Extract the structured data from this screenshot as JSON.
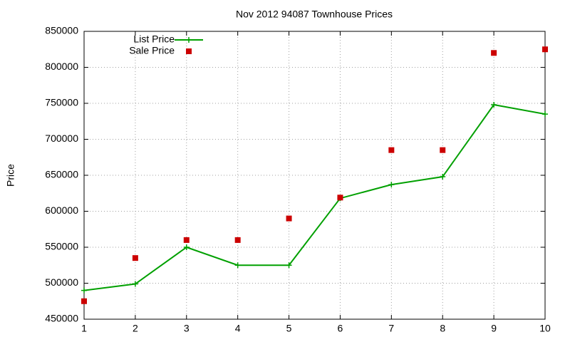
{
  "chart_data": {
    "type": "line",
    "title": "Nov 2012 94087 Townhouse Prices",
    "y_label": "Price",
    "x": [
      1,
      2,
      3,
      4,
      5,
      6,
      7,
      8,
      9,
      10
    ],
    "series": [
      {
        "name": "List Price",
        "color": "#00a000",
        "style": "linespoints",
        "values": [
          490000,
          499000,
          550000,
          525000,
          525000,
          618000,
          637000,
          648000,
          748000,
          735000
        ]
      },
      {
        "name": "Sale Price",
        "color": "#cc0000",
        "style": "points",
        "values": [
          475000,
          535000,
          560000,
          560000,
          590000,
          619000,
          685000,
          685000,
          820000,
          825000
        ]
      }
    ],
    "xlim": [
      1,
      10
    ],
    "xticks": [
      1,
      2,
      3,
      4,
      5,
      6,
      7,
      8,
      9,
      10
    ],
    "ylim": [
      450000,
      850000
    ],
    "yticks": [
      450000,
      500000,
      550000,
      600000,
      650000,
      700000,
      750000,
      800000,
      850000
    ],
    "grid": true,
    "legend": "top left"
  }
}
